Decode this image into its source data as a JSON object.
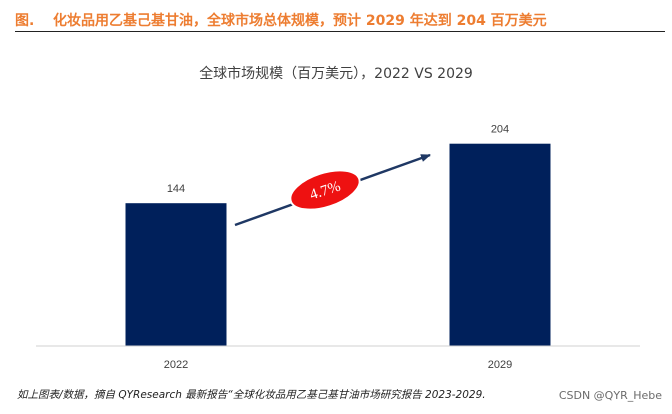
{
  "figure": {
    "label": "图.",
    "title": "化妆品用乙基己基甘油，全球市场总体规模，预计 2029 年达到 204 百万美元"
  },
  "chart_data": {
    "type": "bar",
    "title": "全球市场规模（百万美元），2022 VS 2029",
    "categories": [
      "2022",
      "2029"
    ],
    "values": [
      144,
      204
    ],
    "data_labels": [
      "144",
      "204"
    ],
    "ylim": [
      0,
      240
    ],
    "grid": false,
    "legend": "none",
    "bar_color": "#00205B",
    "annotation": {
      "text": "4.7%",
      "shape": "ellipse",
      "fill": "#EE1111",
      "text_color": "#ffffff",
      "arrow_color": "#1F3864"
    }
  },
  "footer": {
    "source": "如上图表/数据，摘自 QYResearch 最新报告“全球化妆品用乙基己基甘油市场研究报告 2023-2029.",
    "watermark": "CSDN @QYR_Hebe"
  }
}
